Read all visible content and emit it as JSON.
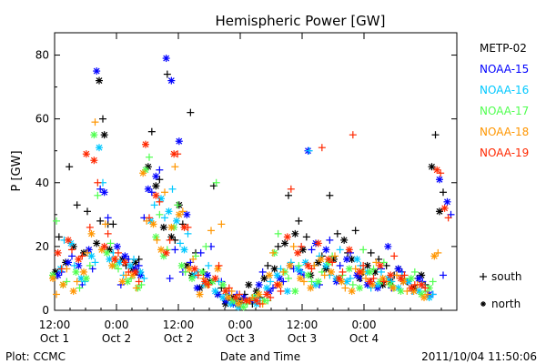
{
  "chart_data": {
    "type": "scatter",
    "title": "Hemispheric Power [GW]",
    "ylabel": "P [GW]",
    "xlabel": "Date and Time",
    "ylim": [
      0,
      87
    ],
    "xlim": [
      0,
      78
    ],
    "yticks": [
      0,
      20,
      40,
      60,
      80
    ],
    "xticks": [
      {
        "x": 0,
        "time": "12:00",
        "date": "Oct 1"
      },
      {
        "x": 12,
        "time": "0:00",
        "date": "Oct 2"
      },
      {
        "x": 24,
        "time": "12:00",
        "date": "Oct 2"
      },
      {
        "x": 36,
        "time": "0:00",
        "date": "Oct 3"
      },
      {
        "x": 48,
        "time": "12:00",
        "date": "Oct 3"
      },
      {
        "x": 60,
        "time": "0:00",
        "date": "Oct 4"
      }
    ],
    "grid": false,
    "legend": {
      "placement": "right"
    },
    "marker_legend": [
      {
        "symbol": "+",
        "label": "south"
      },
      {
        "symbol": "*",
        "label": "north"
      }
    ],
    "series": [
      {
        "name": "METP-02",
        "color": "#000000",
        "x": [
          0.5,
          2.5,
          4,
          6,
          8.5,
          9,
          10,
          11,
          13.5,
          15.5,
          16,
          18.5,
          20,
          21.5,
          23,
          24.5,
          26,
          27,
          28.5,
          30.5,
          32,
          33.5,
          35,
          36.5,
          38,
          39.5,
          41,
          43,
          45,
          47,
          48.5,
          50,
          51.5,
          53,
          54.5,
          56.5,
          58,
          59.5,
          61,
          62.5,
          64,
          65.5,
          67,
          68,
          70,
          71.5,
          73.5,
          75
        ],
        "south": [
          23,
          45,
          33,
          31,
          28,
          60,
          27,
          27,
          14,
          12,
          16,
          56,
          41,
          74,
          22,
          27,
          62,
          18,
          12,
          39,
          7,
          4,
          3,
          5,
          2,
          4,
          14,
          20,
          36,
          28,
          23,
          14,
          17,
          36,
          24,
          18,
          25,
          12,
          18,
          16,
          14,
          11,
          12,
          9,
          10,
          8,
          55,
          37
        ],
        "north": [
          12,
          15,
          20,
          18,
          21,
          72,
          55,
          19,
          16,
          13,
          15,
          45,
          39,
          26,
          23,
          33,
          14,
          11,
          7,
          9,
          5,
          2,
          4,
          3,
          8,
          6,
          10,
          13,
          21,
          24,
          19,
          11,
          15,
          13,
          16,
          22,
          16,
          10,
          14,
          12,
          8,
          9,
          13,
          9,
          7,
          11,
          45,
          31
        ]
      },
      {
        "name": "NOAA-15",
        "color": "#0000ff",
        "x": [
          1,
          3,
          5,
          7,
          8.5,
          10,
          12.5,
          14,
          16,
          17,
          18.5,
          20,
          22,
          23,
          24.5,
          26,
          28,
          30,
          32,
          33.5,
          35,
          37,
          38.5,
          40,
          42,
          44,
          46,
          48,
          49.5,
          51,
          53,
          55,
          57,
          59,
          61,
          63,
          65,
          67,
          69,
          71,
          73,
          75,
          76.5
        ],
        "south": [
          12,
          17,
          8,
          13,
          38,
          29,
          8,
          16,
          14,
          29,
          37,
          44,
          10,
          19,
          12,
          15,
          18,
          20,
          9,
          6,
          5,
          3,
          4,
          12,
          7,
          9,
          13,
          11,
          19,
          8,
          22,
          14,
          18,
          10,
          9,
          13,
          7,
          12,
          6,
          9,
          5,
          11,
          30
        ],
        "north": [
          11,
          15,
          14,
          19,
          75,
          37,
          20,
          17,
          13,
          11,
          38,
          42,
          79,
          72,
          53,
          30,
          7,
          11,
          5,
          3,
          2,
          4,
          3,
          8,
          6,
          10,
          14,
          12,
          50,
          21,
          19,
          9,
          16,
          11,
          8,
          7,
          20,
          13,
          9,
          10,
          5,
          41,
          34
        ]
      },
      {
        "name": "NOAA-16",
        "color": "#00c8ff",
        "x": [
          1.5,
          3.5,
          5.5,
          7.5,
          9,
          11,
          13,
          15,
          17,
          19,
          21,
          22.5,
          24,
          25.5,
          27.5,
          29.5,
          31.5,
          33,
          34.5,
          36,
          38,
          39.5,
          41.5,
          43.5,
          45.5,
          47.5,
          49,
          51,
          53,
          55,
          57,
          59,
          61,
          63,
          65,
          67,
          69,
          71,
          73
        ],
        "south": [
          22,
          14,
          9,
          15,
          40,
          18,
          11,
          16,
          10,
          33,
          29,
          38,
          21,
          24,
          12,
          14,
          9,
          5,
          3,
          2,
          4,
          3,
          9,
          13,
          15,
          12,
          50,
          17,
          11,
          19,
          10,
          14,
          7,
          12,
          9,
          11,
          6,
          8,
          5
        ],
        "north": [
          13,
          21,
          10,
          17,
          51,
          16,
          15,
          14,
          12,
          28,
          35,
          31,
          28,
          19,
          11,
          8,
          6,
          4,
          2,
          1,
          3,
          2,
          7,
          11,
          6,
          13,
          15,
          8,
          14,
          10,
          9,
          16,
          12,
          8,
          10,
          7,
          9,
          6,
          4
        ]
      },
      {
        "name": "NOAA-17",
        "color": "#50ff50",
        "x": [
          0,
          2,
          4.5,
          6.5,
          8,
          10.5,
          12,
          14.5,
          16.5,
          18,
          20,
          21.5,
          23.5,
          25,
          27,
          29,
          31,
          33,
          35,
          37,
          39,
          41,
          43,
          45,
          47,
          49.5,
          51.5,
          53.5,
          55.5,
          57.5,
          59.5,
          61.5,
          63.5,
          65.5,
          67.5,
          69.5,
          71.5,
          73
        ],
        "south": [
          28,
          9,
          7,
          14,
          36,
          21,
          13,
          10,
          8,
          48,
          30,
          19,
          33,
          12,
          17,
          20,
          40,
          6,
          4,
          2,
          5,
          3,
          24,
          10,
          14,
          9,
          12,
          17,
          11,
          8,
          19,
          13,
          15,
          7,
          10,
          12,
          6,
          9
        ],
        "north": [
          11,
          8,
          12,
          10,
          55,
          18,
          14,
          9,
          7,
          44,
          23,
          17,
          26,
          14,
          10,
          12,
          9,
          8,
          3,
          1,
          4,
          3,
          18,
          12,
          6,
          11,
          9,
          15,
          10,
          13,
          7,
          12,
          9,
          8,
          6,
          10,
          5,
          7
        ]
      },
      {
        "name": "NOAA-18",
        "color": "#ff9600",
        "x": [
          0,
          2,
          4,
          6,
          7.5,
          9.5,
          11.5,
          13.5,
          15.5,
          17.5,
          19.5,
          21,
          23,
          24.5,
          26.5,
          28.5,
          30,
          32,
          34,
          36,
          38,
          40,
          42,
          44,
          46,
          48,
          50,
          52,
          54,
          56,
          58,
          60,
          62,
          64,
          66,
          68,
          70,
          72,
          74
        ],
        "south": [
          5,
          13,
          9,
          18,
          59,
          27,
          16,
          11,
          7,
          28,
          22,
          37,
          45,
          31,
          16,
          10,
          25,
          27,
          6,
          3,
          4,
          2,
          18,
          12,
          20,
          9,
          14,
          11,
          17,
          7,
          13,
          10,
          15,
          9,
          11,
          6,
          8,
          5,
          18
        ],
        "north": [
          10,
          8,
          6,
          12,
          24,
          19,
          14,
          9,
          11,
          43,
          27,
          19,
          26,
          30,
          13,
          5,
          8,
          13,
          4,
          2,
          3,
          5,
          11,
          8,
          14,
          10,
          7,
          16,
          12,
          9,
          6,
          12,
          8,
          10,
          7,
          9,
          6,
          4,
          17
        ]
      },
      {
        "name": "NOAA-19",
        "color": "#ff2800",
        "x": [
          1,
          3,
          5,
          6.5,
          8,
          10,
          12,
          14,
          16,
          18,
          20,
          22,
          23.5,
          25.5,
          27.5,
          29.5,
          31.5,
          33.5,
          35.5,
          37.5,
          39.5,
          41.5,
          43.5,
          45.5,
          47.5,
          49.5,
          51.5,
          53.5,
          55.5,
          57.5,
          59.5,
          61.5,
          63.5,
          65.5,
          67.5,
          69.5,
          71.5,
          74.5,
          76
        ],
        "south": [
          13,
          19,
          17,
          26,
          40,
          24,
          18,
          12,
          9,
          29,
          34,
          22,
          49,
          26,
          11,
          8,
          14,
          7,
          5,
          3,
          2,
          4,
          6,
          38,
          20,
          13,
          51,
          15,
          12,
          55,
          14,
          10,
          9,
          17,
          11,
          8,
          7,
          43,
          29
        ],
        "north": [
          18,
          22,
          16,
          49,
          47,
          20,
          16,
          15,
          12,
          52,
          36,
          18,
          49,
          26,
          13,
          9,
          10,
          6,
          4,
          3,
          3,
          5,
          8,
          23,
          18,
          14,
          21,
          16,
          10,
          19,
          12,
          9,
          14,
          11,
          10,
          7,
          8,
          44,
          32
        ]
      }
    ]
  },
  "legend_entries": [
    {
      "label": "METP-02",
      "color": "#000000"
    },
    {
      "label": "NOAA-15",
      "color": "#0000ff"
    },
    {
      "label": "NOAA-16",
      "color": "#00c8ff"
    },
    {
      "label": "NOAA-17",
      "color": "#50ff50"
    },
    {
      "label": "NOAA-18",
      "color": "#ff9600"
    },
    {
      "label": "NOAA-19",
      "color": "#ff2800"
    }
  ],
  "footer": {
    "plot_credit": "Plot: CCMC",
    "xlabel": "Date and Time",
    "timestamp": "2011/10/04 11:50:06"
  }
}
